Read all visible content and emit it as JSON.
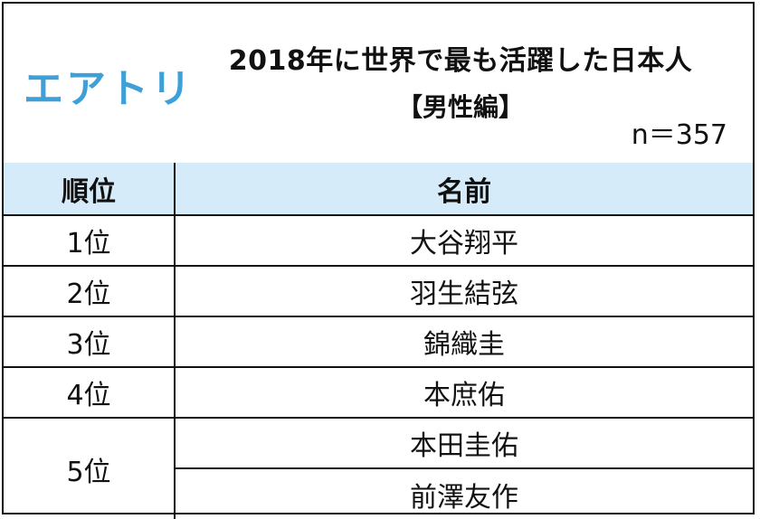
{
  "logo": {
    "text": "エアトリ",
    "color": "#3fa0d8"
  },
  "title": "2018年に世界で最も活躍した日本人",
  "subtitle": "【男性編】",
  "sample": "n＝357",
  "table": {
    "headers": {
      "rank": "順位",
      "name": "名前"
    },
    "header_bg": "#d6ebfa",
    "rows": [
      {
        "rank": "1位",
        "name": "大谷翔平"
      },
      {
        "rank": "2位",
        "name": "羽生結弦"
      },
      {
        "rank": "3位",
        "name": "錦織圭"
      },
      {
        "rank": "4位",
        "name": "本庶佑"
      },
      {
        "rank": "5位",
        "name": "本田圭佑"
      },
      {
        "rank": "",
        "name": "前澤友作"
      }
    ]
  }
}
